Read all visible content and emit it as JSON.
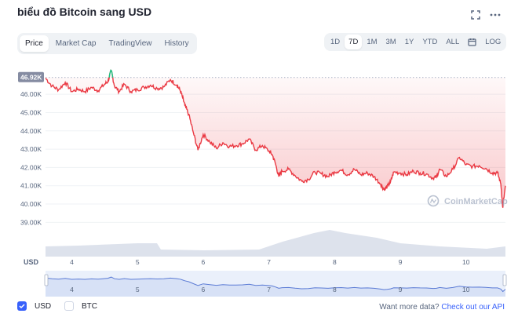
{
  "header": {
    "title": "biểu đồ Bitcoin sang USD"
  },
  "chart_tabs": [
    "Price",
    "Market Cap",
    "TradingView",
    "History"
  ],
  "active_tab": "Price",
  "time_ranges": [
    "1D",
    "7D",
    "1M",
    "3M",
    "1Y",
    "YTD",
    "ALL"
  ],
  "active_range": "7D",
  "log_label": "LOG",
  "watermark": "CoinMarketCap",
  "currency_label": "USD",
  "current_price_label": "46.92K",
  "legend": {
    "usd_label": "USD",
    "btc_label": "BTC"
  },
  "footer": {
    "prefix": "Want more data?",
    "link": "Check out our API"
  },
  "colors": {
    "up": "#16c784",
    "down": "#ea3943",
    "volume": "#cfd6e4",
    "navigator_line": "#5b7bd5",
    "accent": "#3861fb"
  },
  "icons": {
    "fullscreen": "fullscreen-icon",
    "more": "more-horizontal-icon",
    "calendar": "calendar-icon",
    "checkbox_checked": "check-icon"
  },
  "chart_data": {
    "type": "line",
    "title": "",
    "xlabel": "",
    "ylabel": "",
    "x_ticks": [
      "4",
      "5",
      "6",
      "7",
      "8",
      "9",
      "10"
    ],
    "y_ticks": [
      "46.00K",
      "45.00K",
      "44.00K",
      "43.00K",
      "42.00K",
      "41.00K",
      "40.00K",
      "39.00K"
    ],
    "ylim": [
      38800,
      46950
    ],
    "xlim": [
      3.6,
      10.6
    ],
    "baseline_price": 46920,
    "grid": true,
    "series": [
      {
        "x": [
          3.6,
          3.7,
          3.8,
          3.9,
          4.0,
          4.1,
          4.2,
          4.3,
          4.4,
          4.5,
          4.55,
          4.6,
          4.65,
          4.72,
          4.8,
          4.9,
          5.0,
          5.1,
          5.2,
          5.3,
          5.4,
          5.5,
          5.6,
          5.65,
          5.68,
          5.72,
          5.78,
          5.85,
          5.92,
          6.0,
          6.1,
          6.2,
          6.3,
          6.4,
          6.5,
          6.6,
          6.7,
          6.8,
          6.9,
          7.0,
          7.05,
          7.1,
          7.15,
          7.2,
          7.3,
          7.4,
          7.5,
          7.6,
          7.7,
          7.8,
          7.9,
          8.0,
          8.1,
          8.2,
          8.3,
          8.4,
          8.5,
          8.6,
          8.7,
          8.75,
          8.8,
          8.85,
          8.9,
          9.0,
          9.1,
          9.2,
          9.3,
          9.4,
          9.5,
          9.55,
          9.6,
          9.7,
          9.8,
          9.9,
          10.0,
          10.1,
          10.2,
          10.3,
          10.4,
          10.48,
          10.53,
          10.56,
          10.6
        ],
        "values": [
          46880,
          46450,
          46250,
          46650,
          46150,
          46280,
          46150,
          46380,
          46200,
          46550,
          46700,
          47300,
          46450,
          46150,
          46550,
          46150,
          46250,
          46380,
          46500,
          46320,
          46400,
          46800,
          46500,
          46200,
          45900,
          45400,
          44900,
          43900,
          42950,
          43800,
          43400,
          43050,
          43350,
          43150,
          43200,
          43300,
          43550,
          42950,
          43200,
          42900,
          42700,
          42200,
          41500,
          41800,
          41900,
          41550,
          41250,
          41350,
          41750,
          41650,
          41500,
          41750,
          41850,
          41600,
          41900,
          41600,
          41700,
          41500,
          41100,
          40800,
          40950,
          41200,
          41750,
          41700,
          41600,
          41800,
          41700,
          41650,
          41400,
          41500,
          41900,
          41500,
          41900,
          42550,
          42150,
          42050,
          42100,
          41950,
          41700,
          41700,
          41100,
          39800,
          41000
        ]
      }
    ]
  }
}
